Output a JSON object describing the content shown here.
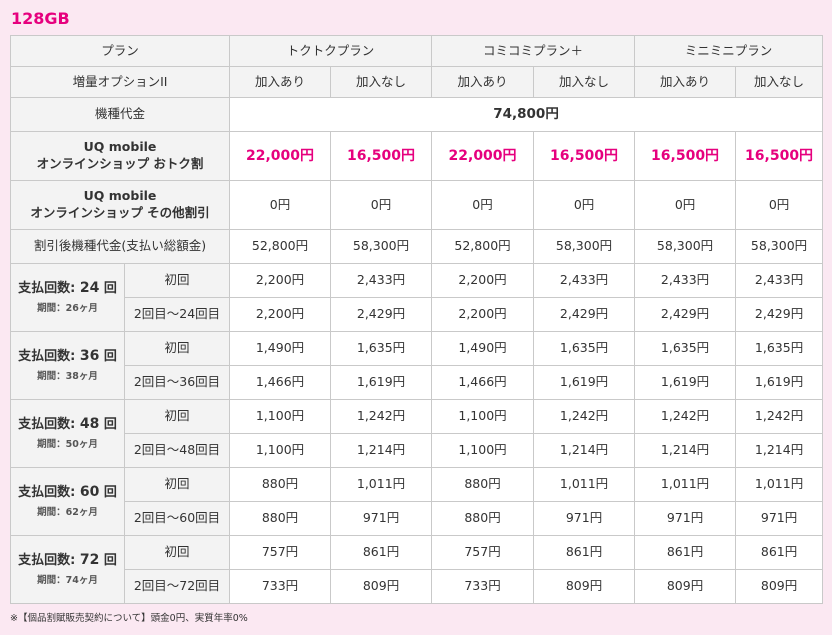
{
  "title": "128GB",
  "header": {
    "plan_label": "プラン",
    "plans": [
      "トクトクプラン",
      "コミコミプラン＋",
      "ミニミニプラン"
    ],
    "option_label": "増量オプションII",
    "options": [
      "加入あり",
      "加入なし",
      "加入あり",
      "加入なし",
      "加入あり",
      "加入なし"
    ]
  },
  "device_price": {
    "label": "機種代金",
    "value": "74,800円"
  },
  "online_discount": {
    "label1": "UQ mobile",
    "label2": "オンラインショップ おトク割",
    "values": [
      "22,000円",
      "16,500円",
      "22,000円",
      "16,500円",
      "16,500円",
      "16,500円"
    ]
  },
  "other_discount": {
    "label1": "UQ mobile",
    "label2": "オンラインショップ その他割引",
    "values": [
      "0円",
      "0円",
      "0円",
      "0円",
      "0円",
      "0円"
    ]
  },
  "after_discount": {
    "label": "割引後機種代金(支払い総額金)",
    "values": [
      "52,800円",
      "58,300円",
      "52,800円",
      "58,300円",
      "58,300円",
      "58,300円"
    ]
  },
  "installments": [
    {
      "count_prefix": "支払回数: ",
      "count": "24",
      "count_suffix": " 回",
      "period": "期間：26ヶ月",
      "rows": [
        {
          "label": "初回",
          "values": [
            "2,200円",
            "2,433円",
            "2,200円",
            "2,433円",
            "2,433円",
            "2,433円"
          ]
        },
        {
          "label": "2回目～24回目",
          "values": [
            "2,200円",
            "2,429円",
            "2,200円",
            "2,429円",
            "2,429円",
            "2,429円"
          ]
        }
      ]
    },
    {
      "count_prefix": "支払回数: ",
      "count": "36",
      "count_suffix": " 回",
      "period": "期間：38ヶ月",
      "rows": [
        {
          "label": "初回",
          "values": [
            "1,490円",
            "1,635円",
            "1,490円",
            "1,635円",
            "1,635円",
            "1,635円"
          ]
        },
        {
          "label": "2回目～36回目",
          "values": [
            "1,466円",
            "1,619円",
            "1,466円",
            "1,619円",
            "1,619円",
            "1,619円"
          ]
        }
      ]
    },
    {
      "count_prefix": "支払回数: ",
      "count": "48",
      "count_suffix": " 回",
      "period": "期間：50ヶ月",
      "rows": [
        {
          "label": "初回",
          "values": [
            "1,100円",
            "1,242円",
            "1,100円",
            "1,242円",
            "1,242円",
            "1,242円"
          ]
        },
        {
          "label": "2回目～48回目",
          "values": [
            "1,100円",
            "1,214円",
            "1,100円",
            "1,214円",
            "1,214円",
            "1,214円"
          ]
        }
      ]
    },
    {
      "count_prefix": "支払回数: ",
      "count": "60",
      "count_suffix": " 回",
      "period": "期間：62ヶ月",
      "rows": [
        {
          "label": "初回",
          "values": [
            "880円",
            "1,011円",
            "880円",
            "1,011円",
            "1,011円",
            "1,011円"
          ]
        },
        {
          "label": "2回目～60回目",
          "values": [
            "880円",
            "971円",
            "880円",
            "971円",
            "971円",
            "971円"
          ]
        }
      ]
    },
    {
      "count_prefix": "支払回数: ",
      "count": "72",
      "count_suffix": " 回",
      "period": "期間：74ヶ月",
      "rows": [
        {
          "label": "初回",
          "values": [
            "757円",
            "861円",
            "757円",
            "861円",
            "861円",
            "861円"
          ]
        },
        {
          "label": "2回目～72回目",
          "values": [
            "733円",
            "809円",
            "733円",
            "809円",
            "809円",
            "809円"
          ]
        }
      ]
    }
  ],
  "footnote": "※【個品割賦販売契約について】頭金0円、実質年率0%",
  "colors": {
    "accent": "#e6007e",
    "background": "#fbe8f2",
    "header_gray": "#f3f3f3",
    "border": "#c9c9c9"
  }
}
